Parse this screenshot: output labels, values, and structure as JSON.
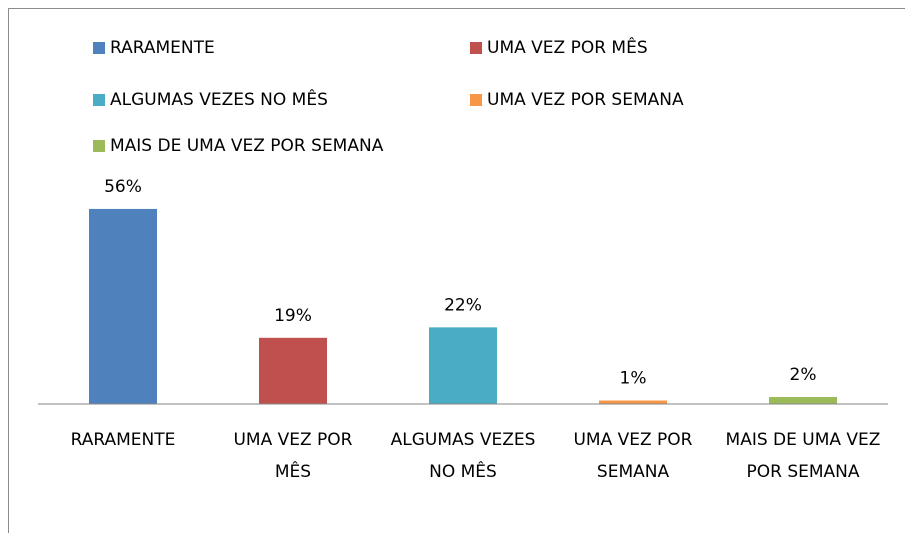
{
  "chart_data": {
    "type": "bar",
    "categories": [
      "RARAMENTE",
      "UMA VEZ POR MÊS",
      "ALGUMAS VEZES NO MÊS",
      "UMA VEZ POR SEMANA",
      "MAIS DE UMA VEZ POR SEMANA"
    ],
    "values": [
      56,
      19,
      22,
      1,
      2
    ],
    "value_labels": [
      "56%",
      "19%",
      "22%",
      "1%",
      "2%"
    ],
    "colors": [
      "#4f81bd",
      "#c0504d",
      "#4bacc6",
      "#f79646",
      "#9bbb59"
    ],
    "ylim": [
      0,
      60
    ],
    "legend": "top"
  }
}
